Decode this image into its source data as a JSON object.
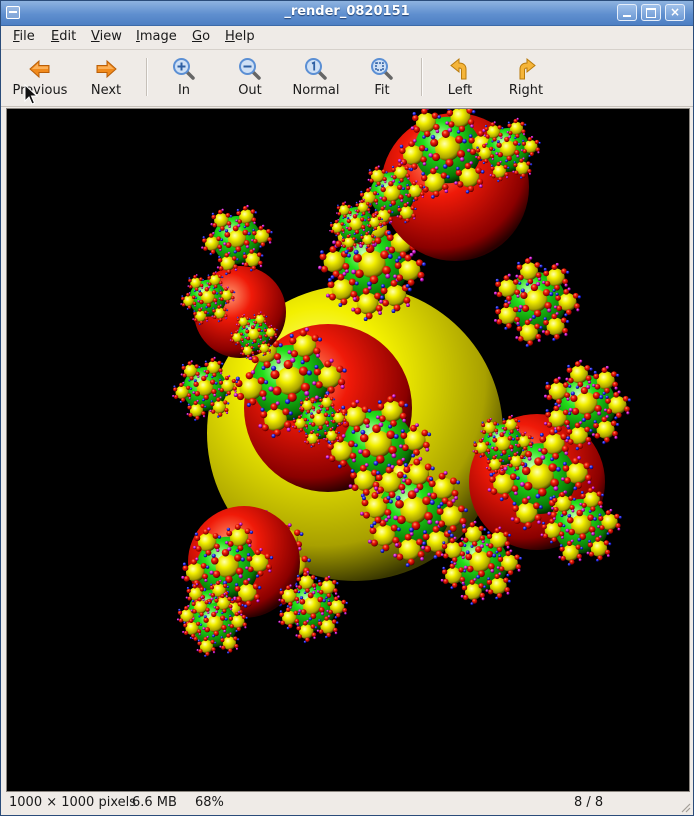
{
  "window": {
    "title": "_render_0820151"
  },
  "menu": [
    {
      "label": "File",
      "mnemonic": "F",
      "rest": "ile"
    },
    {
      "label": "Edit",
      "mnemonic": "E",
      "rest": "dit"
    },
    {
      "label": "View",
      "mnemonic": "V",
      "rest": "iew"
    },
    {
      "label": "Image",
      "mnemonic": "I",
      "rest": "mage"
    },
    {
      "label": "Go",
      "mnemonic": "G",
      "rest": "o"
    },
    {
      "label": "Help",
      "mnemonic": "H",
      "rest": "elp"
    }
  ],
  "toolbar": {
    "previous": "Previous",
    "next": "Next",
    "zoom_in": "In",
    "zoom_out": "Out",
    "zoom_normal": "Normal",
    "zoom_fit": "Fit",
    "rotate_left": "Left",
    "rotate_right": "Right"
  },
  "status": {
    "dimensions": "1000 × 1000 pixels",
    "filesize": "6.6 MB",
    "zoom": "68%",
    "position": "8 / 8"
  },
  "colors": {
    "titlebar": "#5f8fcf",
    "background": "#efebe7",
    "arrow_orange": "#f08a1c",
    "zoom_blue": "#5b8fd4"
  }
}
